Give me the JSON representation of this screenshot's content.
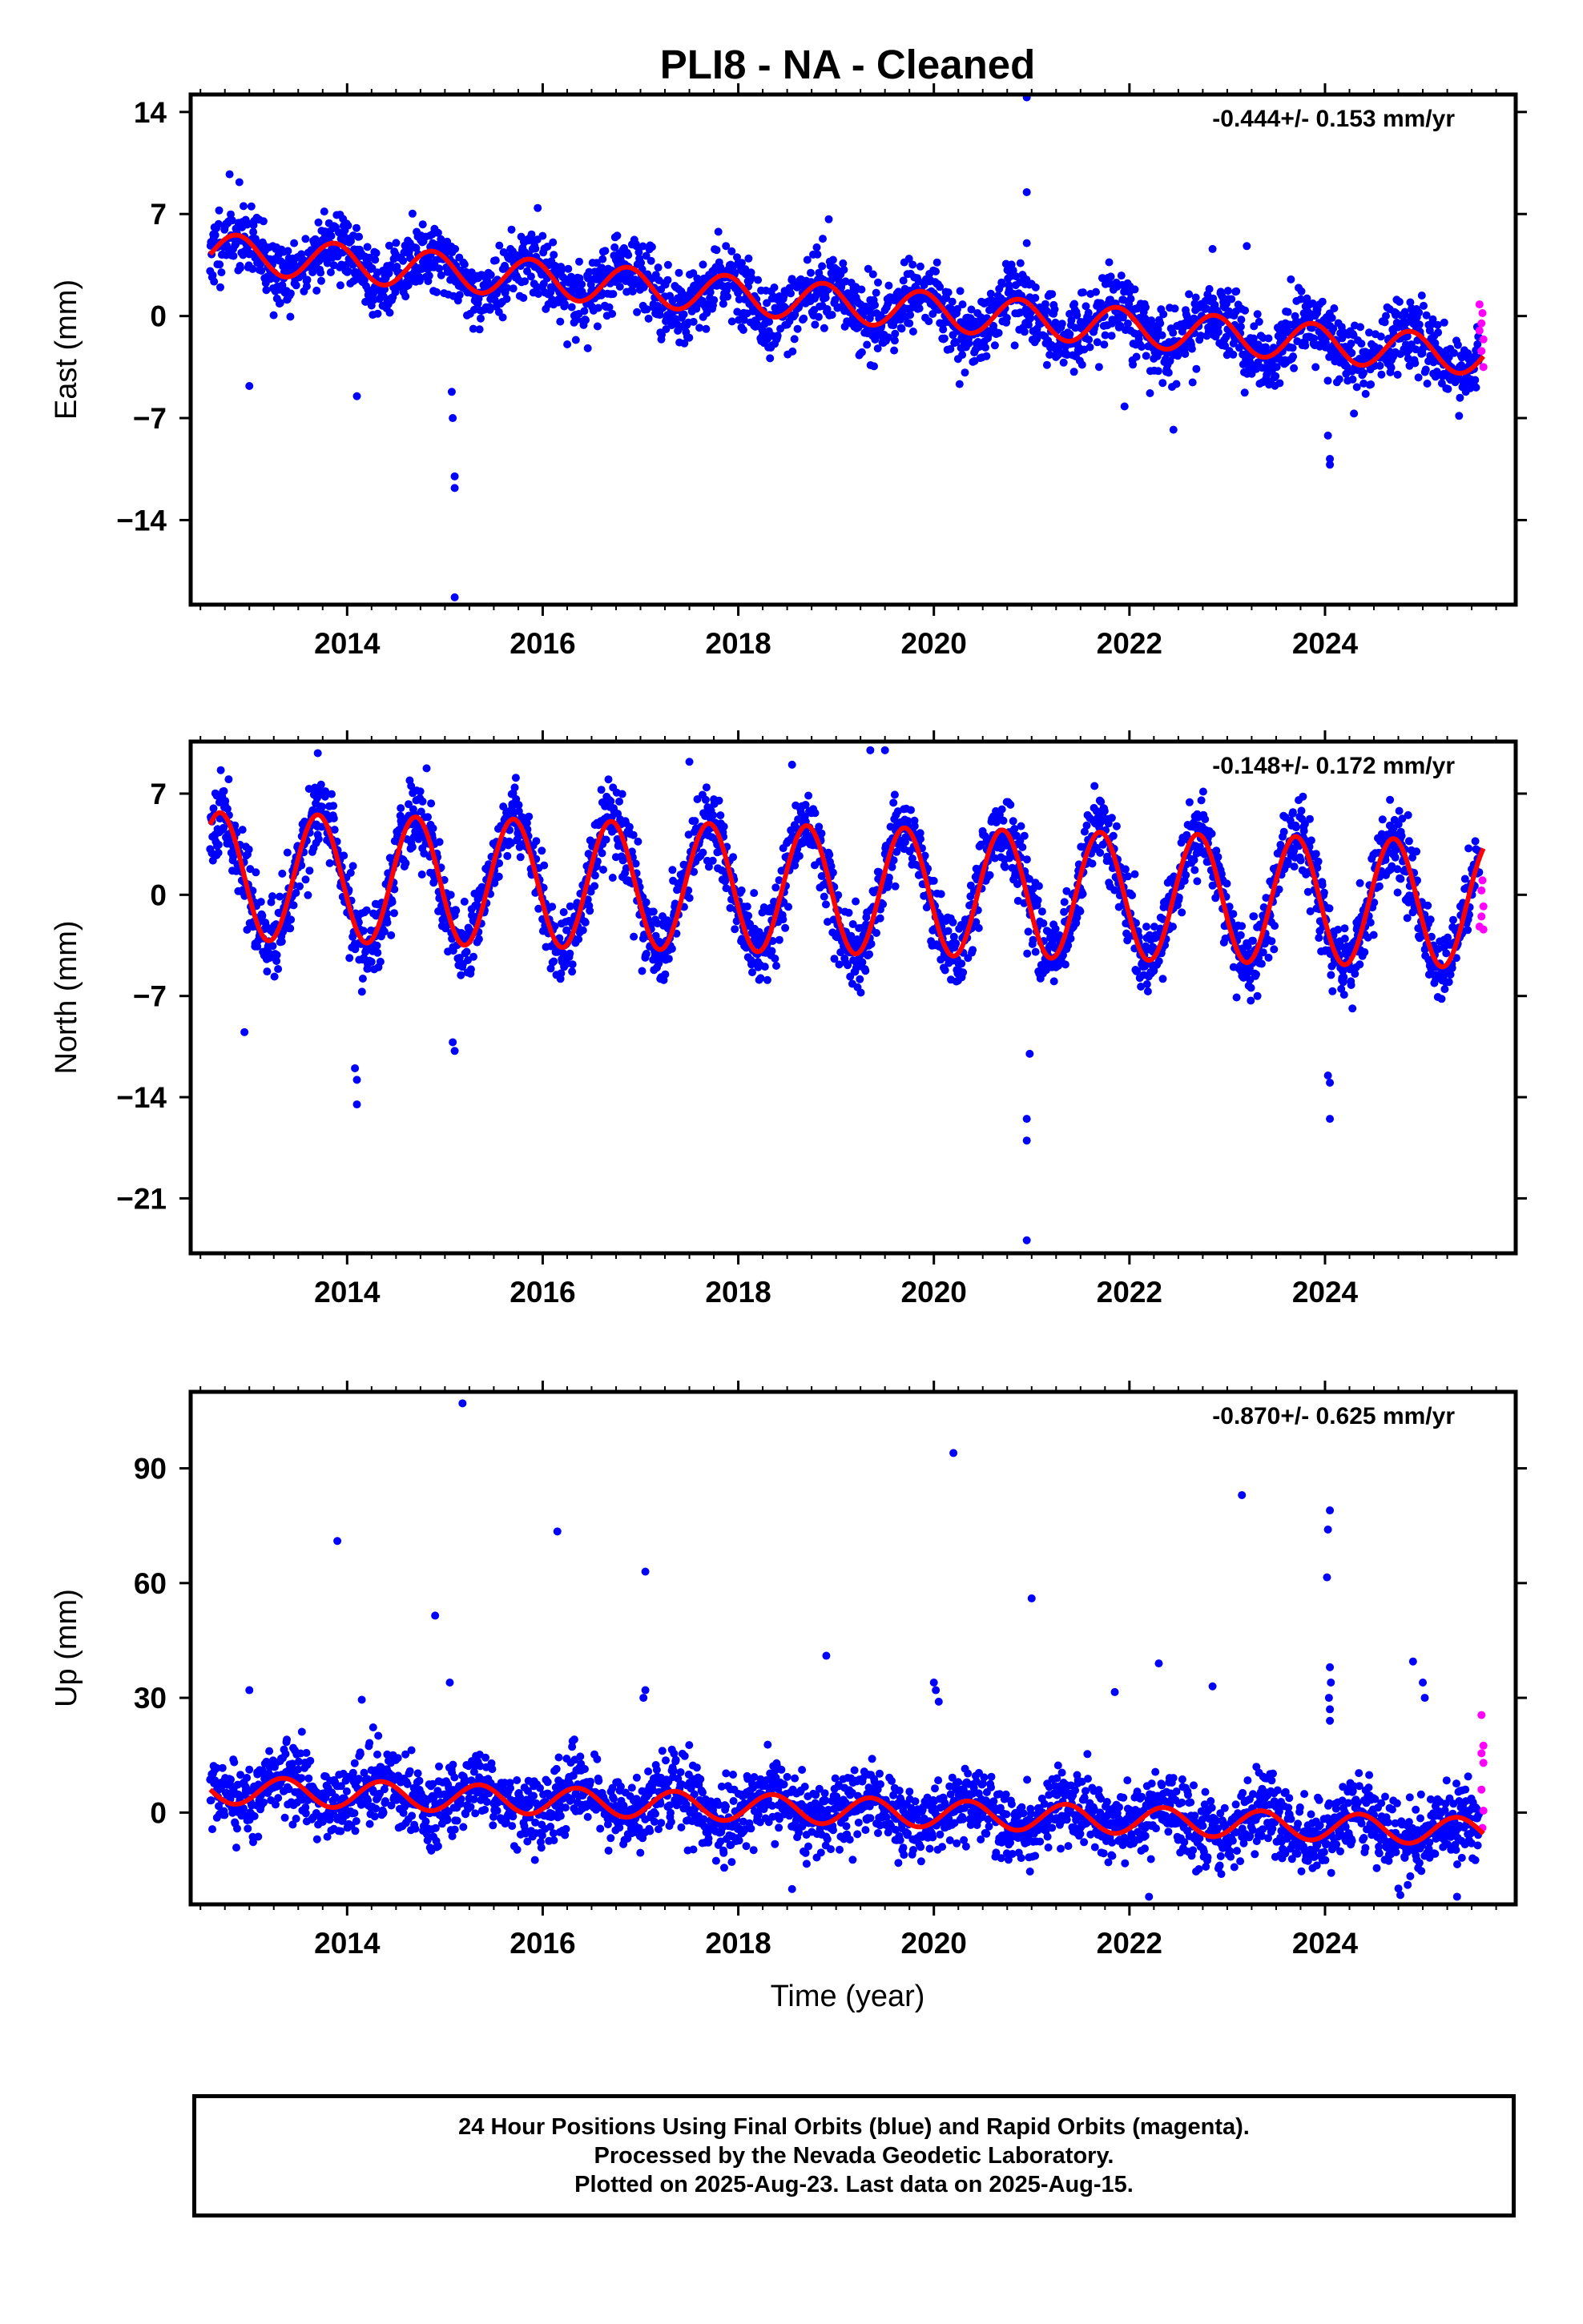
{
  "title": "PLI8  - NA - Cleaned",
  "xlabel": "Time (year)",
  "colors": {
    "final": "#0000ff",
    "rapid": "#ff00ff",
    "model": "#ff0000",
    "axis": "#000000"
  },
  "footer": {
    "line1": "24 Hour Positions Using Final Orbits (blue) and Rapid Orbits (magenta).",
    "line2": "Processed by the Nevada Geodetic Laboratory.",
    "line3": "Plotted on 2025-Aug-23. Last data on 2025-Aug-15."
  },
  "chart_data": [
    {
      "type": "scatter",
      "ylabel": "East (mm)",
      "rate": "-0.444+/- 0.153 mm/yr",
      "xlim": [
        2012.4,
        2025.95
      ],
      "ylim": [
        -19.8,
        15.2
      ],
      "xticks": [
        2014,
        2016,
        2018,
        2020,
        2022,
        2024
      ],
      "yticks": [
        14,
        7,
        0,
        -7,
        -14
      ],
      "yticklabels": [
        "14",
        "7",
        "0",
        "−7",
        "−14"
      ],
      "model": {
        "start": 4.4,
        "rate": -0.55,
        "amp": 1.3,
        "phase": 0.62,
        "start_year": 2012.6,
        "end_year": 2025.62
      },
      "scatter": {
        "seed": 11,
        "n": 2600,
        "noise": 1.2
      },
      "outliers": [
        [
          2015.1,
          -19.3
        ],
        [
          2015.1,
          -11.8
        ],
        [
          2015.1,
          -11.0
        ],
        [
          2015.08,
          -7.0
        ],
        [
          2015.07,
          -5.2
        ],
        [
          2020.95,
          15.0
        ],
        [
          2020.95,
          8.5
        ],
        [
          2020.95,
          5.0
        ],
        [
          2013.0,
          -4.8
        ],
        [
          2024.05,
          -9.8
        ],
        [
          2024.05,
          -10.2
        ],
        [
          2024.03,
          -8.2
        ],
        [
          2022.45,
          -7.8
        ],
        [
          2014.1,
          -5.5
        ],
        [
          2023.2,
          4.8
        ],
        [
          2022.85,
          4.6
        ],
        [
          2021.95,
          -6.2
        ]
      ],
      "rapid": [
        [
          2025.58,
          0.8
        ],
        [
          2025.6,
          -0.5
        ],
        [
          2025.62,
          -1.6
        ],
        [
          2025.6,
          -2.4
        ],
        [
          2025.62,
          -3.5
        ],
        [
          2025.58,
          -1.0
        ],
        [
          2025.61,
          0.2
        ]
      ]
    },
    {
      "type": "scatter",
      "ylabel": "North (mm)",
      "rate": "-0.148+/- 0.172 mm/yr",
      "xlim": [
        2012.4,
        2025.95
      ],
      "ylim": [
        -24.8,
        10.6
      ],
      "xticks": [
        2014,
        2016,
        2018,
        2020,
        2022,
        2024
      ],
      "yticks": [
        7,
        0,
        -7,
        -14,
        -21
      ],
      "yticklabels": [
        "7",
        "0",
        "−7",
        "−14",
        "−21"
      ],
      "model": {
        "start": 1.3,
        "rate": -0.15,
        "amp": 4.4,
        "phase": 0.45,
        "start_year": 2012.6,
        "end_year": 2025.62
      },
      "scatter": {
        "seed": 23,
        "n": 2700,
        "noise": 1.3
      },
      "outliers": [
        [
          2020.95,
          -23.9
        ],
        [
          2020.95,
          -17.0
        ],
        [
          2020.95,
          -15.5
        ],
        [
          2020.98,
          -11.0
        ],
        [
          2014.1,
          -14.5
        ],
        [
          2014.1,
          -12.8
        ],
        [
          2014.08,
          -12.0
        ],
        [
          2015.1,
          -10.8
        ],
        [
          2015.08,
          -10.2
        ],
        [
          2012.95,
          -9.5
        ],
        [
          2024.05,
          -15.5
        ],
        [
          2024.05,
          -13.0
        ],
        [
          2024.03,
          -12.5
        ],
        [
          2019.35,
          10.0
        ],
        [
          2019.5,
          10.0
        ],
        [
          2013.7,
          9.8
        ],
        [
          2017.5,
          9.2
        ],
        [
          2018.55,
          9.0
        ]
      ],
      "rapid": [
        [
          2025.6,
          0.3
        ],
        [
          2025.62,
          -0.8
        ],
        [
          2025.6,
          -1.5
        ],
        [
          2025.62,
          -2.4
        ],
        [
          2025.58,
          -2.2
        ],
        [
          2025.61,
          1.0
        ]
      ]
    },
    {
      "type": "scatter",
      "ylabel": "Up (mm)",
      "rate": "-0.870+/- 0.625 mm/yr",
      "xlim": [
        2012.4,
        2025.95
      ],
      "ylim": [
        -24,
        110
      ],
      "xticks": [
        2014,
        2016,
        2018,
        2020,
        2022,
        2024
      ],
      "yticks": [
        90,
        60,
        30,
        0
      ],
      "yticklabels": [
        "90",
        "60",
        "30",
        "0"
      ],
      "model": {
        "start": 6.0,
        "rate": -0.85,
        "amp": 3.6,
        "phase": 0.1,
        "start_year": 2012.6,
        "end_year": 2025.62
      },
      "scatter": {
        "seed": 37,
        "n": 2600,
        "noise": 4.8
      },
      "outliers": [
        [
          2015.18,
          107
        ],
        [
          2013.9,
          71
        ],
        [
          2016.15,
          73.5
        ],
        [
          2014.9,
          51.5
        ],
        [
          2017.05,
          63
        ],
        [
          2017.05,
          32
        ],
        [
          2017.03,
          30
        ],
        [
          2015.05,
          34
        ],
        [
          2013.0,
          32
        ],
        [
          2014.15,
          29.5
        ],
        [
          2018.9,
          41
        ],
        [
          2020.2,
          94
        ],
        [
          2020.0,
          34
        ],
        [
          2020.02,
          32
        ],
        [
          2020.05,
          29
        ],
        [
          2021.0,
          56
        ],
        [
          2021.85,
          31.5
        ],
        [
          2022.3,
          39
        ],
        [
          2022.85,
          33
        ],
        [
          2023.15,
          83
        ],
        [
          2024.05,
          79
        ],
        [
          2024.03,
          74
        ],
        [
          2024.02,
          61.5
        ],
        [
          2024.05,
          38
        ],
        [
          2024.06,
          34
        ],
        [
          2024.04,
          30
        ],
        [
          2024.05,
          27
        ],
        [
          2024.05,
          24
        ],
        [
          2024.9,
          39.5
        ],
        [
          2025.0,
          34
        ],
        [
          2025.02,
          30
        ],
        [
          2025.35,
          -22
        ],
        [
          2022.2,
          -22
        ],
        [
          2018.55,
          -20
        ]
      ],
      "rapid": [
        [
          2025.6,
          25.5
        ],
        [
          2025.62,
          17.5
        ],
        [
          2025.6,
          15.5
        ],
        [
          2025.62,
          13.0
        ],
        [
          2025.6,
          6.0
        ],
        [
          2025.62,
          0.5
        ],
        [
          2025.61,
          -4.0
        ]
      ]
    }
  ]
}
